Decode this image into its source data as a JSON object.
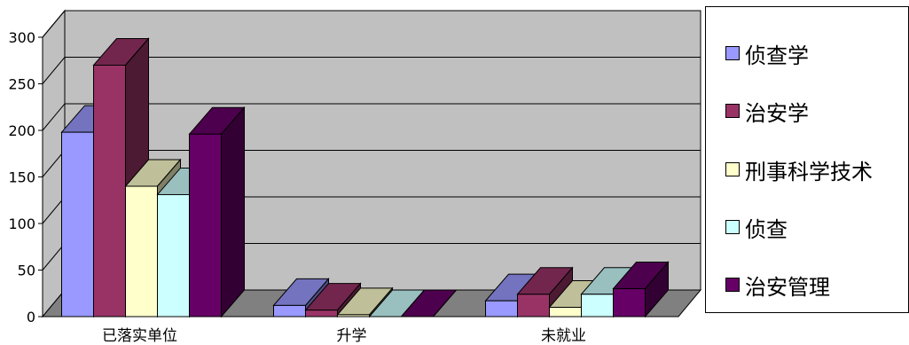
{
  "chart_data": {
    "type": "bar",
    "categories": [
      "已落实单位",
      "升学",
      "未就业"
    ],
    "series": [
      {
        "name": "侦查学",
        "values": [
          198,
          12,
          17
        ],
        "color": "#9999ff"
      },
      {
        "name": "治安学",
        "values": [
          270,
          7,
          24
        ],
        "color": "#993366"
      },
      {
        "name": "刑事科学技术",
        "values": [
          140,
          2,
          10
        ],
        "color": "#ffffcc"
      },
      {
        "name": "侦查",
        "values": [
          131,
          0,
          24
        ],
        "color": "#ccffff"
      },
      {
        "name": "治安管理",
        "values": [
          196,
          0,
          30
        ],
        "color": "#660066"
      }
    ],
    "y_ticks": [
      "0",
      "50",
      "100",
      "150",
      "200",
      "250",
      "300"
    ],
    "ylim": [
      0,
      300
    ],
    "grid": true,
    "legend": "right",
    "wall_color": "#c0c0c0",
    "floor_color": "#808080"
  }
}
